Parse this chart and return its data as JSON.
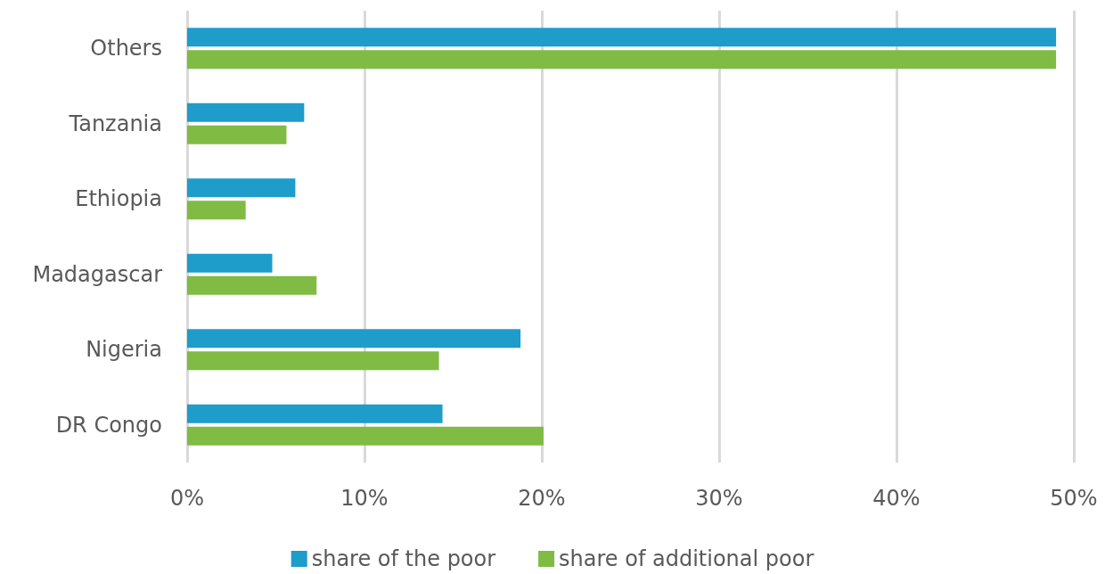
{
  "chart_data": {
    "type": "bar",
    "orientation": "horizontal",
    "categories": [
      "Others",
      "Tanzania",
      "Ethiopia",
      "Madagascar",
      "Nigeria",
      "DR Congo"
    ],
    "series": [
      {
        "name": "share of the poor",
        "color": "#1e9cca",
        "values": [
          49.0,
          6.6,
          6.1,
          4.8,
          18.8,
          14.4
        ]
      },
      {
        "name": "share of additional poor",
        "color": "#80bb44",
        "values": [
          49.0,
          5.6,
          3.3,
          7.3,
          14.2,
          20.1
        ]
      }
    ],
    "xlim": [
      0,
      50
    ],
    "xticks": [
      {
        "value": 0,
        "label": "0%"
      },
      {
        "value": 10,
        "label": "10%"
      },
      {
        "value": 20,
        "label": "20%"
      },
      {
        "value": 30,
        "label": "30%"
      },
      {
        "value": 40,
        "label": "40%"
      },
      {
        "value": 50,
        "label": "50%"
      }
    ],
    "grid": "x",
    "legend": "bottom"
  }
}
